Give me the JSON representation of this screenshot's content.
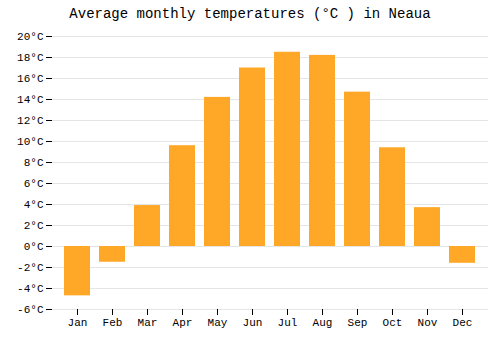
{
  "chart_data": {
    "type": "bar",
    "title": "Average monthly temperatures (°C ) in Neaua",
    "categories": [
      "Jan",
      "Feb",
      "Mar",
      "Apr",
      "May",
      "Jun",
      "Jul",
      "Aug",
      "Sep",
      "Oct",
      "Nov",
      "Dec"
    ],
    "values": [
      -4.7,
      -1.5,
      3.9,
      9.6,
      14.2,
      17.0,
      18.5,
      18.2,
      14.7,
      9.4,
      3.7,
      -1.6
    ],
    "color": "#FFA726",
    "ylim": [
      -6,
      20
    ],
    "yticks": [
      {
        "value": -6,
        "label": "-6°C"
      },
      {
        "value": -4,
        "label": "-4°C"
      },
      {
        "value": -2,
        "label": "-2°C"
      },
      {
        "value": 0,
        "label": "0°C"
      },
      {
        "value": 2,
        "label": "2°C"
      },
      {
        "value": 4,
        "label": "4°C"
      },
      {
        "value": 6,
        "label": "6°C"
      },
      {
        "value": 8,
        "label": "8°C"
      },
      {
        "value": 10,
        "label": "10°C"
      },
      {
        "value": 12,
        "label": "12°C"
      },
      {
        "value": 14,
        "label": "14°C"
      },
      {
        "value": 16,
        "label": "16°C"
      },
      {
        "value": 18,
        "label": "18°C"
      },
      {
        "value": 20,
        "label": "20°C"
      }
    ],
    "grid": true
  }
}
